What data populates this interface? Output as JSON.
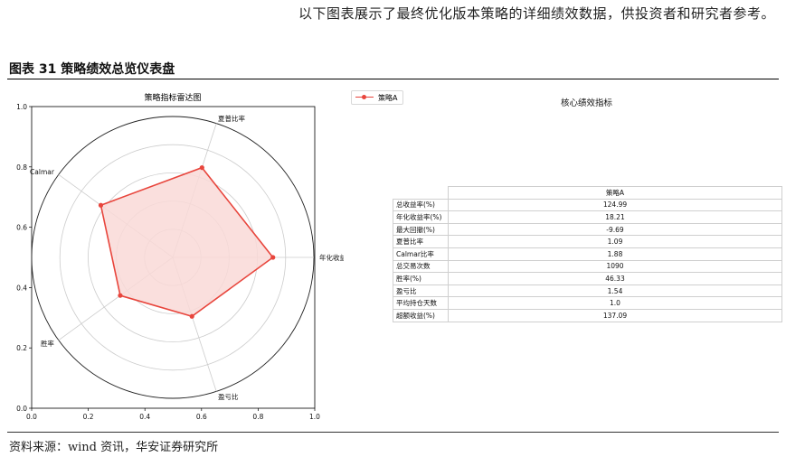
{
  "intro_text": "以下图表展示了最终优化版本策略的详细绩效数据，供投资者和研究者参考。",
  "figure_title": "图表 31 策略绩效总览仪表盘",
  "source_text": "资料来源：wind 资讯，华安证券研究所",
  "colors": {
    "series": "#e8453c",
    "fill": "#f9d9d7",
    "grid": "#cccccc"
  },
  "chart_data": [
    {
      "type": "radar",
      "title": "策略指标雷达图",
      "axes": [
        "年化收益",
        "夏普比率",
        "Calmar",
        "胜率",
        "盈亏比"
      ],
      "series": [
        {
          "name": "策略A",
          "values": [
            0.71,
            0.67,
            0.63,
            0.46,
            0.44
          ]
        }
      ],
      "rlim": [
        0,
        1
      ],
      "ring_ticks": [
        0.2,
        0.4,
        0.6,
        0.8,
        1.0
      ],
      "outer_frame": {
        "xlim": [
          0.0,
          1.0
        ],
        "ylim": [
          0.0,
          1.0
        ],
        "xticks": [
          "0.0",
          "0.2",
          "0.4",
          "0.6",
          "0.8",
          "1.0"
        ],
        "yticks": [
          "0.0",
          "0.2",
          "0.4",
          "0.6",
          "0.8",
          "1.0"
        ]
      },
      "legend": "top-right"
    },
    {
      "type": "table",
      "title": "核心绩效指标",
      "columns": [
        "策略A"
      ],
      "rows": [
        {
          "label": "总收益率(%)",
          "value": "124.99"
        },
        {
          "label": "年化收益率(%)",
          "value": "18.21"
        },
        {
          "label": "最大回撤(%)",
          "value": "-9.69"
        },
        {
          "label": "夏普比率",
          "value": "1.09"
        },
        {
          "label": "Calmar比率",
          "value": "1.88"
        },
        {
          "label": "总交易次数",
          "value": "1090"
        },
        {
          "label": "胜率(%)",
          "value": "46.33"
        },
        {
          "label": "盈亏比",
          "value": "1.54"
        },
        {
          "label": "平均持仓天数",
          "value": "1.0"
        },
        {
          "label": "超额收益(%)",
          "value": "137.09"
        }
      ]
    }
  ]
}
